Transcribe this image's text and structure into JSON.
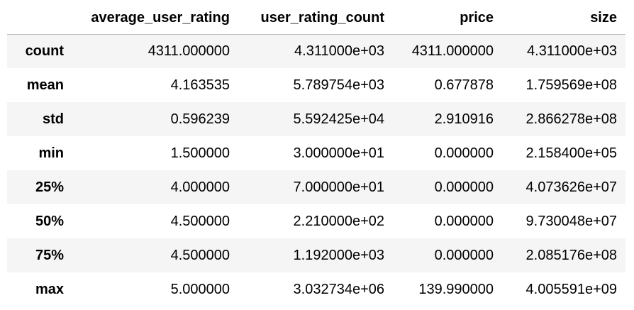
{
  "table": {
    "index_header": "",
    "columns": [
      "average_user_rating",
      "user_rating_count",
      "price",
      "size"
    ],
    "rows": [
      {
        "label": "count",
        "values": [
          "4311.000000",
          "4.311000e+03",
          "4311.000000",
          "4.311000e+03"
        ]
      },
      {
        "label": "mean",
        "values": [
          "4.163535",
          "5.789754e+03",
          "0.677878",
          "1.759569e+08"
        ]
      },
      {
        "label": "std",
        "values": [
          "0.596239",
          "5.592425e+04",
          "2.910916",
          "2.866278e+08"
        ]
      },
      {
        "label": "min",
        "values": [
          "1.500000",
          "3.000000e+01",
          "0.000000",
          "2.158400e+05"
        ]
      },
      {
        "label": "25%",
        "values": [
          "4.000000",
          "7.000000e+01",
          "0.000000",
          "4.073626e+07"
        ]
      },
      {
        "label": "50%",
        "values": [
          "4.500000",
          "2.210000e+02",
          "0.000000",
          "9.730048e+07"
        ]
      },
      {
        "label": "75%",
        "values": [
          "4.500000",
          "1.192000e+03",
          "0.000000",
          "2.085176e+08"
        ]
      },
      {
        "label": "max",
        "values": [
          "5.000000",
          "3.032734e+06",
          "139.990000",
          "4.005591e+09"
        ]
      }
    ]
  }
}
